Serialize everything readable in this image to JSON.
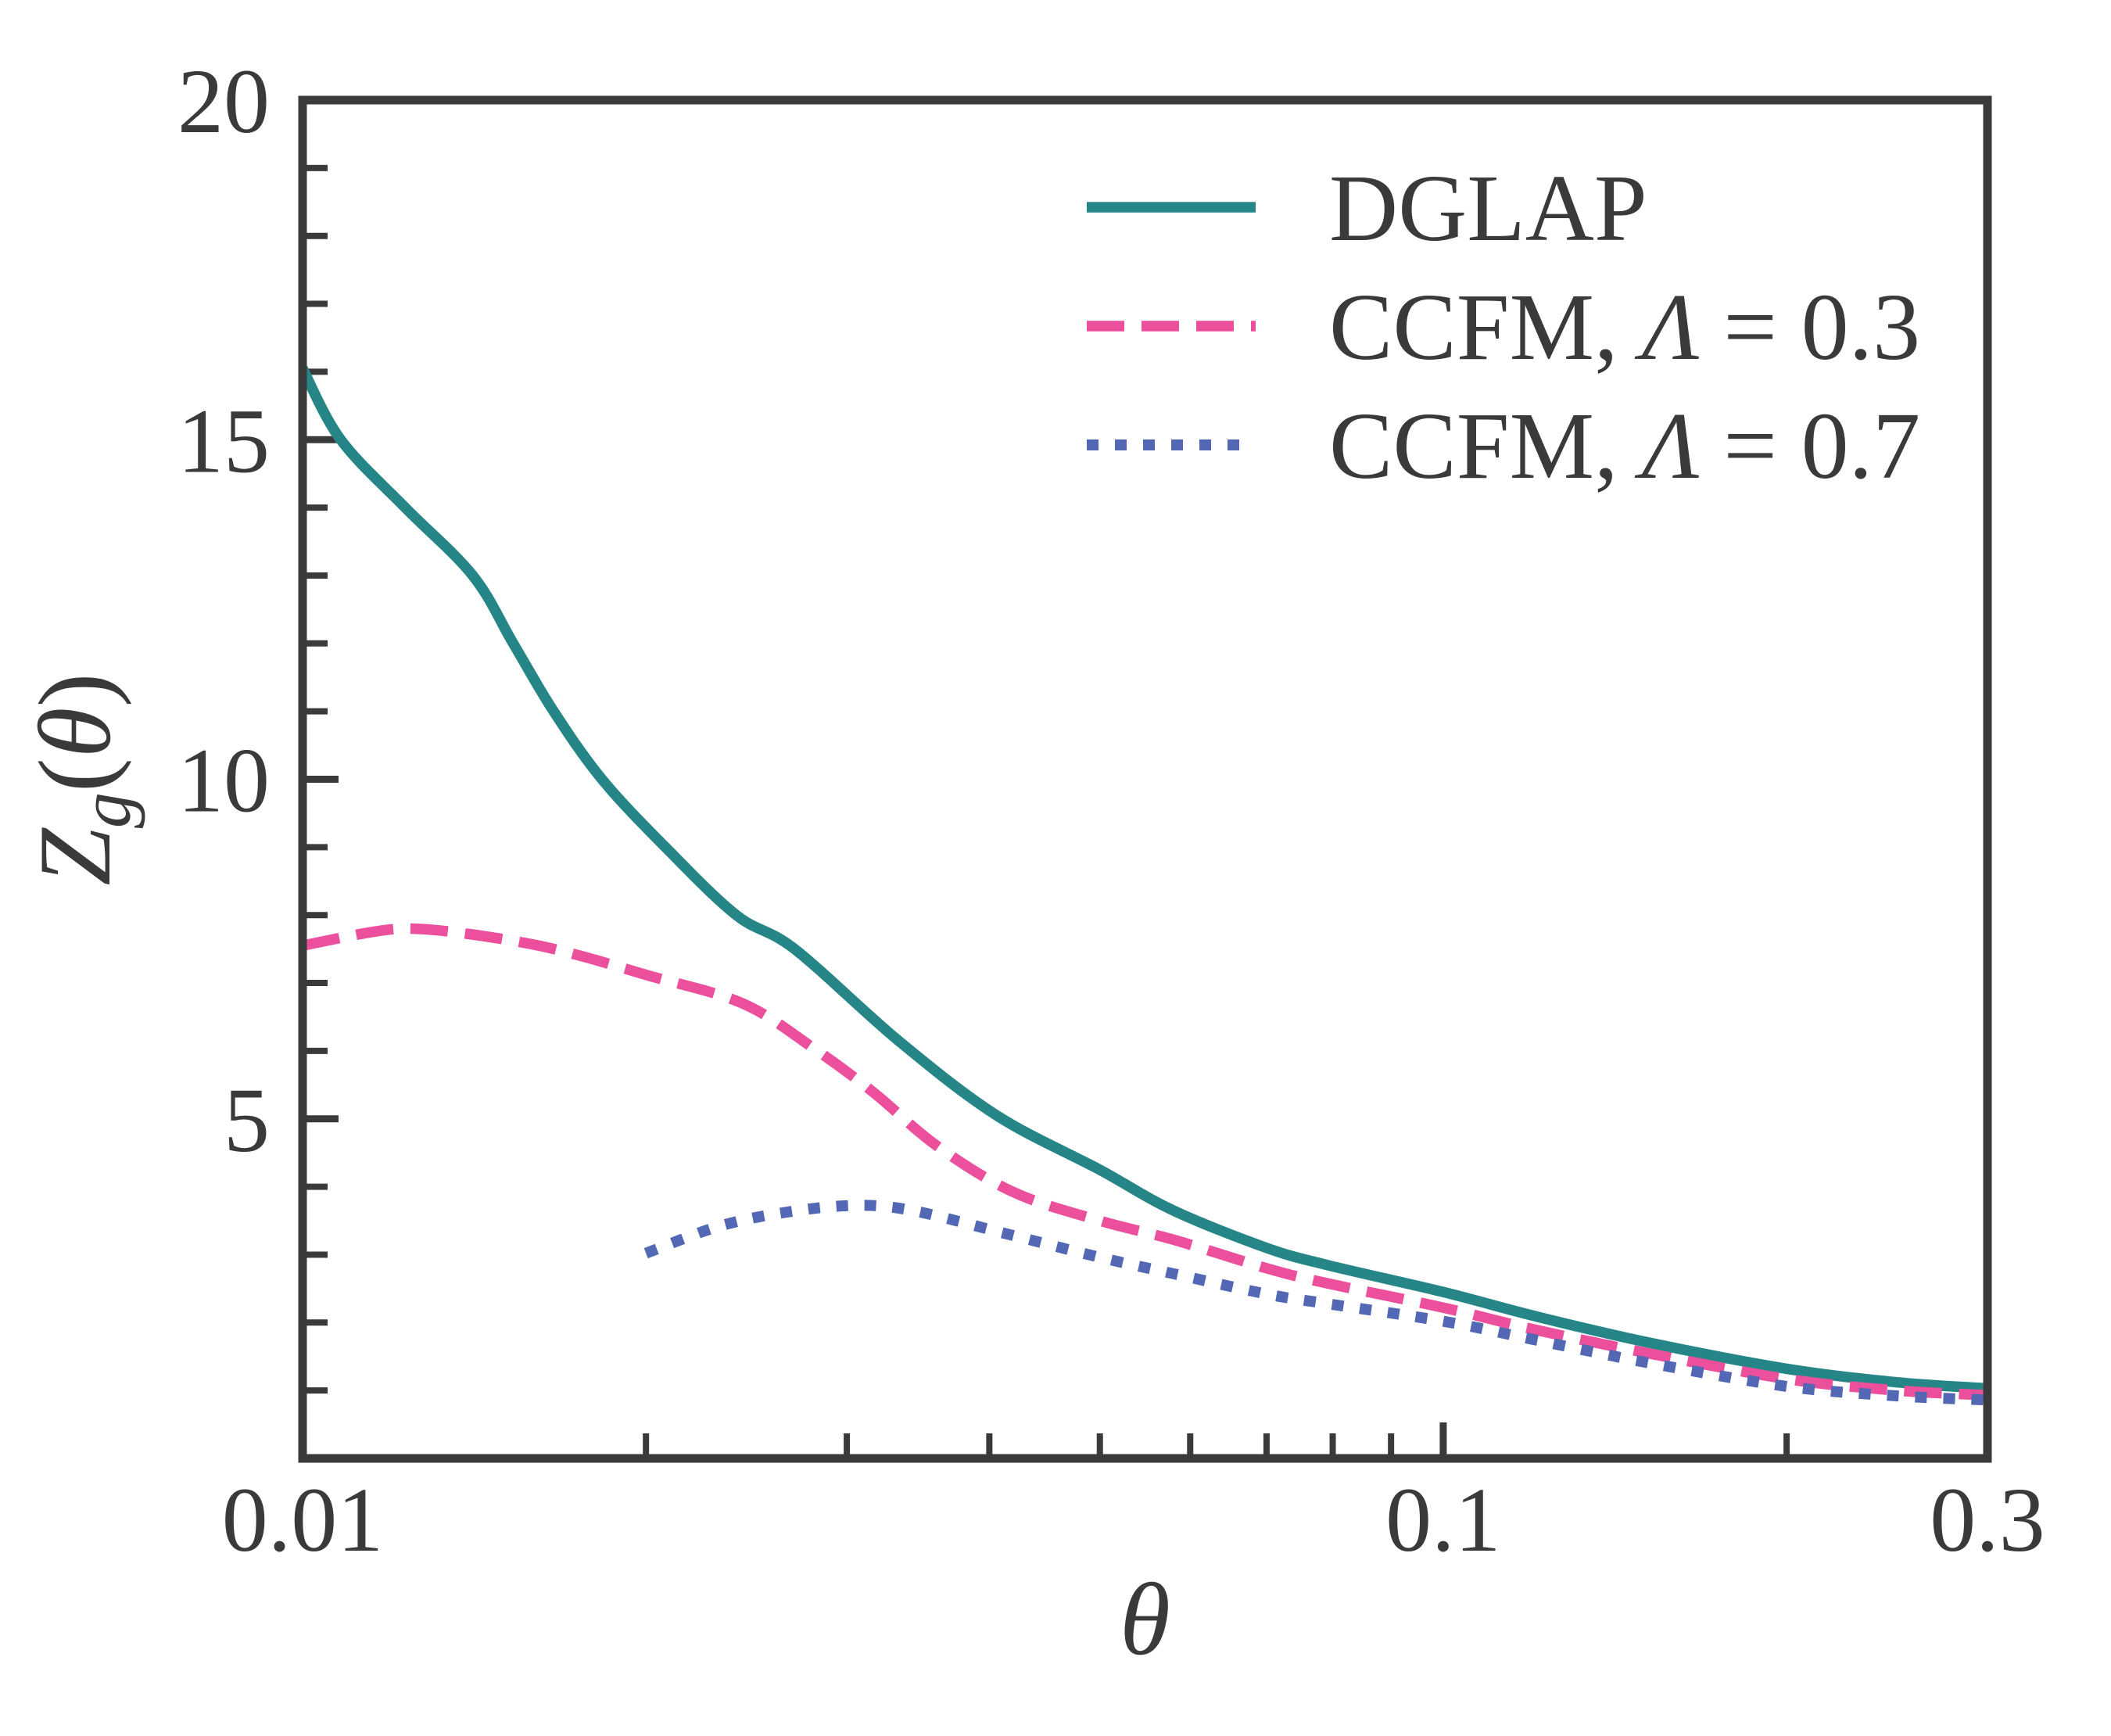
{
  "chart_data": {
    "type": "line",
    "title": "",
    "xlabel": "θ",
    "ylabel": "Z_g(θ)",
    "ylabel_parts": {
      "main": "Z",
      "sub": "g",
      "open": "(",
      "arg": "θ",
      "close": ")"
    },
    "xscale": "log",
    "yscale": "linear",
    "xlim": [
      0.01,
      0.3
    ],
    "ylim": [
      0,
      20
    ],
    "grid": false,
    "legend_position": "upper-right",
    "frame_color": "#3a3a3a",
    "text_color": "#3a3a3a",
    "background_color": "#ffffff",
    "x_ticks_major": [
      {
        "value": 0.01,
        "label": "0.01"
      },
      {
        "value": 0.1,
        "label": "0.1"
      },
      {
        "value": 0.3,
        "label": "0.3"
      }
    ],
    "x_ticks_minor": [
      0.02,
      0.03,
      0.04,
      0.05,
      0.06,
      0.07,
      0.08,
      0.09,
      0.2
    ],
    "y_ticks_major": [
      {
        "value": 5,
        "label": "5"
      },
      {
        "value": 10,
        "label": "10"
      },
      {
        "value": 15,
        "label": "15"
      },
      {
        "value": 20,
        "label": "20"
      }
    ],
    "y_ticks_minor": [
      1,
      2,
      3,
      4,
      6,
      7,
      8,
      9,
      11,
      12,
      13,
      14,
      16,
      17,
      18,
      19
    ],
    "series": [
      {
        "name": "DGLAP",
        "color": "#268687",
        "style": "solid",
        "x": [
          0.01,
          0.0108,
          0.0123,
          0.0141,
          0.0153,
          0.0166,
          0.0183,
          0.0208,
          0.024,
          0.027,
          0.0333,
          0.0406,
          0.05,
          0.058,
          0.07,
          0.079,
          0.1,
          0.12,
          0.15,
          0.2,
          0.25,
          0.3
        ],
        "y": [
          16.05,
          15.0,
          14.0,
          13.0,
          12.0,
          11.0,
          10.0,
          9.0,
          8.0,
          7.5,
          6.15,
          5.05,
          4.25,
          3.65,
          3.1,
          2.85,
          2.45,
          2.1,
          1.72,
          1.32,
          1.12,
          1.03
        ]
      },
      {
        "name": "CCFM, Λ = 0.3",
        "color": "#ec4f9c",
        "style": "dashed",
        "x": [
          0.01,
          0.0115,
          0.0125,
          0.014,
          0.016,
          0.0177,
          0.02,
          0.0243,
          0.028,
          0.0316,
          0.036,
          0.042,
          0.05,
          0.058,
          0.07,
          0.079,
          0.1,
          0.12,
          0.15,
          0.2,
          0.25,
          0.3
        ],
        "y": [
          7.55,
          7.75,
          7.8,
          7.72,
          7.56,
          7.38,
          7.12,
          6.7,
          6.05,
          5.4,
          4.6,
          3.92,
          3.5,
          3.22,
          2.8,
          2.58,
          2.22,
          1.9,
          1.56,
          1.17,
          1.0,
          0.93
        ]
      },
      {
        "name": "CCFM, Λ = 0.7",
        "color": "#5368b4",
        "style": "dotted",
        "x": [
          0.02,
          0.023,
          0.026,
          0.03,
          0.034,
          0.042,
          0.05,
          0.058,
          0.07,
          0.079,
          0.1,
          0.12,
          0.15,
          0.2,
          0.25,
          0.3
        ],
        "y": [
          3.02,
          3.4,
          3.6,
          3.72,
          3.66,
          3.28,
          2.96,
          2.72,
          2.42,
          2.28,
          2.02,
          1.75,
          1.42,
          1.06,
          0.92,
          0.86
        ]
      }
    ]
  }
}
